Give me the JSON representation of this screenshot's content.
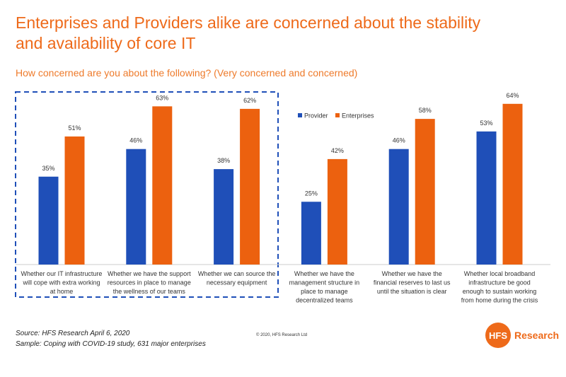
{
  "title": "Enterprises and Providers alike are concerned about the stability and availability of core IT",
  "subtitle": "How concerned are you about the following? (Very concerned and concerned)",
  "chart_data": {
    "type": "bar",
    "categories": [
      [
        "Whether our IT infrastructure",
        "will cope with extra working",
        "at home"
      ],
      [
        "Whether we have the support",
        "resources in place to manage",
        "the wellness of our teams"
      ],
      [
        "Whether we can source the",
        "necessary equipment"
      ],
      [
        "Whether we have the",
        "management structure in",
        "place to manage",
        "decentralized teams"
      ],
      [
        "Whether we have the",
        "financial reserves to last us",
        "until the situation is clear"
      ],
      [
        "Whether local broadband",
        "infrastructure be good",
        "enough to sustain working",
        "from home during the crisis"
      ]
    ],
    "series": [
      {
        "name": "Provider",
        "color": "#1f4fb8",
        "values": [
          35,
          46,
          38,
          25,
          46,
          53
        ]
      },
      {
        "name": "Enterprises",
        "color": "#ec610f",
        "values": [
          51,
          63,
          62,
          42,
          58,
          64
        ]
      }
    ],
    "value_suffix": "%",
    "ylim": [
      0,
      70
    ],
    "legend": "top-middle",
    "highlight_box_categories": [
      0,
      1,
      2
    ]
  },
  "footer": {
    "source": "Source: HFS Research April 6, 2020",
    "sample": "Sample: Coping with COVID-19 study, 631 major enterprises",
    "copyright": "© 2020, HFS Research Ltd",
    "logo_mark": "HFS",
    "logo_text": "Research"
  }
}
